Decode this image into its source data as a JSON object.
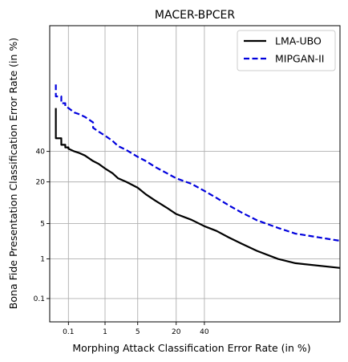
{
  "chart_data": {
    "type": "line",
    "title": "MACER-BPCER",
    "xlabel": "Morphing Attack Classification Error Rate (in %)",
    "ylabel": "Bona Fide Presentation Classification Error Rate (in %)",
    "xscale": "probit",
    "yscale": "probit",
    "xlim": [
      0.025,
      99.5
    ],
    "ylim": [
      0.02,
      98.5
    ],
    "xticks": [
      0.1,
      1,
      5,
      20,
      40
    ],
    "xtick_labels": [
      "0.1",
      "1",
      "5",
      "20",
      "40"
    ],
    "yticks": [
      0.1,
      1,
      5,
      20,
      40
    ],
    "ytick_labels": [
      "0.1",
      "1",
      "5",
      "20",
      "40"
    ],
    "grid": true,
    "legend_position": "top-right",
    "series": [
      {
        "name": "LMA-UBO",
        "color": "#000000",
        "style": "solid",
        "x": [
          0.04,
          0.04,
          0.04,
          0.06,
          0.06,
          0.08,
          0.08,
          0.1,
          0.1,
          0.15,
          0.2,
          0.3,
          0.5,
          0.7,
          1,
          1.5,
          2,
          3,
          5,
          7,
          10,
          15,
          20,
          30,
          40,
          50,
          60,
          70,
          80,
          90,
          95,
          99.5
        ],
        "y": [
          72,
          64,
          50,
          50,
          45,
          45,
          43,
          43,
          42,
          40,
          39,
          37,
          33,
          31,
          28,
          25,
          22,
          20,
          17,
          14,
          11.5,
          9,
          7.2,
          5.8,
          4.5,
          3.7,
          2.8,
          2.1,
          1.5,
          1.0,
          0.8,
          0.62
        ]
      },
      {
        "name": "MIPGAN-II",
        "color": "#0000dd",
        "style": "dashed",
        "x": [
          0.04,
          0.04,
          0.06,
          0.06,
          0.08,
          0.08,
          0.1,
          0.15,
          0.2,
          0.3,
          0.5,
          0.5,
          0.7,
          1,
          1.5,
          2,
          3,
          5,
          7,
          10,
          15,
          20,
          30,
          40,
          50,
          60,
          70,
          80,
          90,
          95,
          99.5
        ],
        "y": [
          85,
          79,
          79,
          75,
          75,
          73,
          72,
          69,
          68,
          66,
          62,
          58,
          55,
          52,
          48,
          44,
          41,
          36,
          33,
          29,
          25,
          22,
          19,
          15.5,
          12.5,
          9.8,
          7.6,
          5.7,
          4.2,
          3.3,
          2.4
        ]
      }
    ]
  }
}
